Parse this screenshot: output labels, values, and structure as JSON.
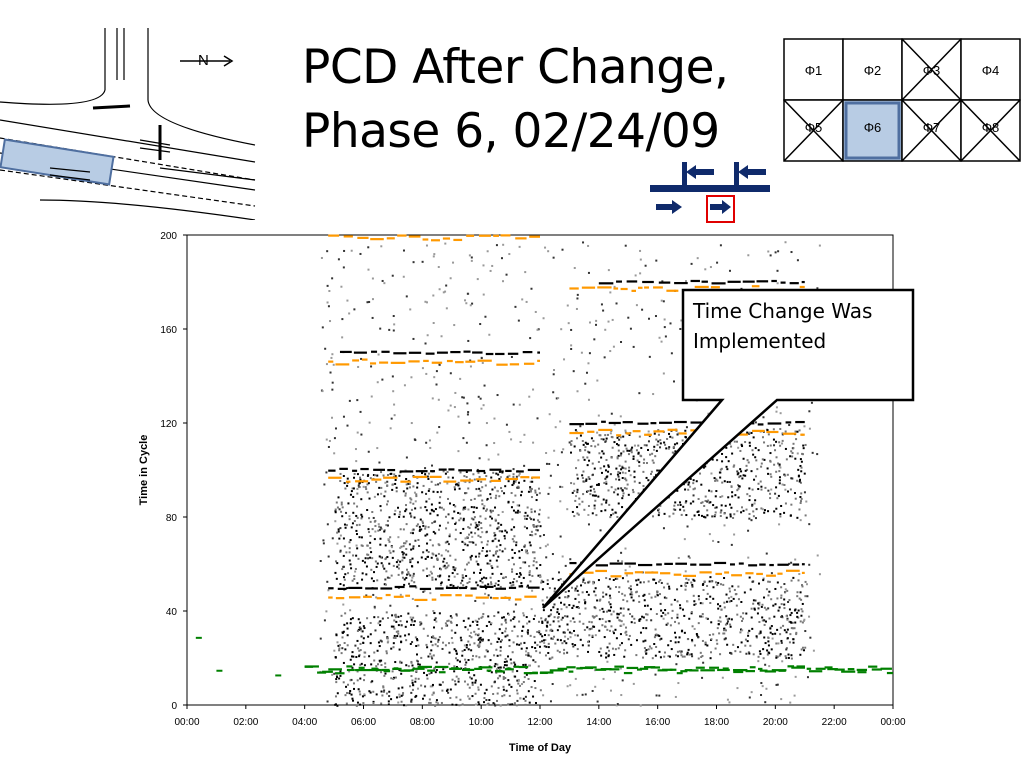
{
  "slide": {
    "title_line1": "PCD After Change,",
    "title_line2": "Phase 6, 02/24/09",
    "north_label": "N"
  },
  "phase_grid": {
    "cells": [
      "Φ1",
      "Φ2",
      "Φ3",
      "Φ4",
      "Φ5",
      "Φ6",
      "Φ7",
      "Φ8"
    ],
    "crossed": [
      "Φ3",
      "Φ5",
      "Φ7",
      "Φ8"
    ],
    "highlighted": "Φ6",
    "highlight_color": "#b8cce4",
    "highlight_border": "#4f6fa0"
  },
  "callout": {
    "line1": "Time Change Was",
    "line2": "Implemented"
  },
  "colors": {
    "vehicle_arrival": "#000000",
    "end_of_green": "#ff9900",
    "start_of_green": "#008000",
    "movement_arrows": "#0f2a6b",
    "selected_movement_box": "#e00000"
  },
  "chart_data": {
    "type": "scatter",
    "title": "",
    "xlabel": "Time of Day",
    "ylabel": "Time in Cycle",
    "xlim": [
      0,
      24
    ],
    "ylim": [
      0,
      200
    ],
    "x_ticks": [
      "00:00",
      "02:00",
      "04:00",
      "06:00",
      "08:00",
      "10:00",
      "12:00",
      "14:00",
      "16:00",
      "18:00",
      "20:00",
      "22:00",
      "00:00"
    ],
    "y_ticks": [
      "0",
      "40",
      "80",
      "120",
      "160",
      "200"
    ],
    "grid": false,
    "annotation": {
      "text": "Time Change Was Implemented",
      "x": 12.2,
      "y": 42
    },
    "series": [
      {
        "kind": "green_line",
        "segments": [
          [
            4.0,
            24.0,
            15
          ]
        ]
      },
      {
        "kind": "orange_line",
        "segments": [
          [
            4.8,
            12.0,
            46
          ],
          [
            4.8,
            12.0,
            96
          ],
          [
            4.8,
            12.0,
            146
          ],
          [
            4.8,
            12.0,
            199
          ],
          [
            13.0,
            21.0,
            56
          ],
          [
            13.0,
            21.0,
            116
          ],
          [
            13.0,
            21.0,
            177
          ]
        ]
      },
      {
        "kind": "black_line",
        "segments": [
          [
            4.8,
            12.0,
            50
          ],
          [
            4.8,
            12.0,
            100
          ],
          [
            5.2,
            12.0,
            150
          ],
          [
            13.0,
            21.0,
            60
          ],
          [
            13.0,
            21.0,
            120
          ],
          [
            14.0,
            21.0,
            180
          ]
        ]
      },
      {
        "kind": "dense_arrivals",
        "regions": [
          [
            5.0,
            12.0,
            0,
            40
          ],
          [
            5.0,
            12.0,
            50,
            100
          ],
          [
            12.0,
            21.0,
            20,
            55
          ],
          [
            13.0,
            21.0,
            80,
            118
          ]
        ]
      }
    ]
  }
}
